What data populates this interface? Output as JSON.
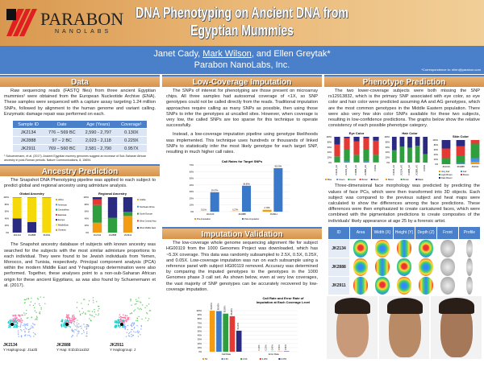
{
  "header": {
    "logo_text": "PARABON",
    "logo_sub": "NANOLABS",
    "title": "DNA Phenotyping on Ancient DNA from Egyptian Mummies",
    "authors_pre": "Janet Cady, ",
    "authors_u": "Mark Wilson",
    "authors_post": ", and Ellen Greytak*",
    "affiliation": "Parabon NanoLabs, Inc.",
    "correspondence": "*Correspondence to: ellen@parabon.com"
  },
  "data": {
    "heading": "Data",
    "text": "Raw sequencing reads (FASTQ files) from three ancient Egyptian mummies¹ were obtained from the European Nucleotide Archive (ENA). These samples were sequenced with a capture assay targeting 1.24 million SNPs, followed by alignment to the human genome and variant calling. Enzymatic damage repair was performed on each.",
    "columns": [
      "Sample ID",
      "Date",
      "Age (Years)",
      "Coverage¹"
    ],
    "rows": [
      [
        "JK2134",
        "776 – 569 BC",
        "2,590 - 2,797",
        "0.130X"
      ],
      [
        "JK2888",
        "97 – 2 BC",
        "2,023 - 2,118",
        "0.229X"
      ],
      [
        "JK2911",
        "769 – 560 BC",
        "2,581 - 2,790",
        "0.957X"
      ]
    ],
    "footnote": "¹ Schuenemann, et al. (2017). Ancient Egyptian mummy genomes suggest an increase of Sub-Saharan African ancestry in post-Roman periods. Nature Communications, 8, 15694."
  },
  "ancestry": {
    "heading": "Ancestry Prediction",
    "text1": "The Snapshot DNA Phenotyping pipeline was applied to each subject to predict global and regional ancestry using admixture analysis.",
    "text2": "The Snapshot ancestry database of subjects with known ancestry was searched for the subjects with the most similar admixture proportions to each individual. They were found to be Jewish individuals from Yemen, Morocco, and Tunisia, respectively. Principal component analysis (PCA) within the modern Middle East and Y-haplogroup determination were also performed. Together, these analyses point to a non-sub-Saharan African origin for these ancient Egyptians, as was also found by Schuenemann et al. (2017).",
    "pca": [
      {
        "id": "JK2134",
        "hap": "Y Haplogroup: J1a2b"
      },
      {
        "id": "JK2888",
        "hap": "Y Hap: E1b1b1a1b2"
      },
      {
        "id": "JK2911",
        "hap": "Y Haplogroup: J"
      }
    ]
  },
  "chart_data": [
    {
      "type": "bar",
      "stacked": true,
      "title": "Global Ancestry",
      "categories": [
        "JK2134",
        "JK2888",
        "JK2911"
      ],
      "yticks": [
        "0%",
        "20%",
        "40%",
        "60%",
        "80%",
        "100%"
      ],
      "series": [
        {
          "name": "Africa",
          "color": "#f39c12",
          "values": [
            0,
            0,
            0
          ]
        },
        {
          "name": "Americas",
          "color": "#4a90e2",
          "values": [
            0,
            0,
            0
          ]
        },
        {
          "name": "CentralAsia",
          "color": "#2e9e3e",
          "values": [
            0,
            0,
            0
          ]
        },
        {
          "name": "EastAsia",
          "color": "#e53935",
          "values": [
            0,
            0,
            0
          ]
        },
        {
          "name": "Europe",
          "color": "#2a2a80",
          "values": [
            40,
            30,
            0
          ]
        },
        {
          "name": "MiddleEast",
          "color": "#f5d90a",
          "values": [
            58,
            68,
            98
          ]
        },
        {
          "name": "Oceania",
          "color": "#d08a2a",
          "values": [
            2,
            2,
            2
          ]
        }
      ]
    },
    {
      "type": "bar",
      "stacked": true,
      "title": "Regional Ancestry",
      "categories": [
        "JK2134",
        "JK2888",
        "JK2911"
      ],
      "yticks": [
        "0%",
        "20%",
        "40%",
        "60%",
        "80%",
        "100%"
      ],
      "series": [
        {
          "name": "Arabia",
          "color": "#f39c12",
          "values": [
            28,
            0,
            47
          ]
        },
        {
          "name": "Northeast Africa",
          "color": "#4a90e2",
          "values": [
            0,
            0,
            0
          ]
        },
        {
          "name": "South Europe",
          "color": "#2e9e3e",
          "values": [
            50,
            42,
            12
          ]
        },
        {
          "name": "West Central Asia",
          "color": "#e53935",
          "values": [
            16,
            0,
            0
          ]
        },
        {
          "name": "West Middle East",
          "color": "#2a2a80",
          "values": [
            6,
            58,
            41
          ]
        }
      ]
    },
    {
      "type": "bar",
      "title": "Call Rates for Target SNPs",
      "categories": [
        "JK2134",
        "JK2888",
        "JK2911"
      ],
      "yticks": [
        "0%",
        "10%",
        "20%",
        "30%",
        "40%",
        "50%",
        "60%",
        "70%"
      ],
      "ylim": [
        0,
        70
      ],
      "series": [
        {
          "name": "Pre-Imputation",
          "color": "#f39c12",
          "values": [
            0.11,
            0.27,
            2.79
          ],
          "labels": [
            "0.11%",
            "0.27%",
            "2.79%"
          ]
        },
        {
          "name": "Post-Imputation",
          "color": "#3a78c9",
          "values": [
            29.07,
            38.89,
            65.19
          ],
          "labels": [
            "29.07%",
            "38.89%",
            "65.19%"
          ]
        }
      ]
    },
    {
      "type": "bar",
      "title": "Call Rate and Error Rate of Imputation at Each Coverage Level",
      "categories": [
        "Call Rate",
        "Error Rate"
      ],
      "yticks": [
        "0%",
        "10%",
        "20%",
        "30%",
        "40%",
        "50%",
        "60%",
        "70%",
        "80%",
        "90%",
        "100%"
      ],
      "ylim": [
        0,
        100
      ],
      "series": [
        {
          "name": "5X",
          "color": "#f39c12",
          "values": [
            99.9,
            0.1
          ],
          "labels": [
            "99.90%",
            "0.10%"
          ]
        },
        {
          "name": "2.5X",
          "color": "#3a78c9",
          "values": [
            98.9,
            0.2
          ],
          "labels": [
            "98.90%",
            "0.20%"
          ]
        },
        {
          "name": "0.5X",
          "color": "#2e9e3e",
          "values": [
            92.8,
            0.4
          ],
          "labels": [
            "92.80%",
            "0.40%"
          ]
        },
        {
          "name": "0.25X",
          "color": "#e53935",
          "values": [
            86.4,
            0.5
          ],
          "labels": [
            "86.40%",
            "0.50%"
          ]
        },
        {
          "name": "0.05X",
          "color": "#2a2a80",
          "values": [
            51.2,
            0.9
          ],
          "labels": [
            "51.20%",
            "0.90%"
          ]
        }
      ]
    },
    {
      "type": "bar",
      "stacked": true,
      "title": "Eye Color",
      "categories": [
        "JK2134_AA",
        "JK2134_AG",
        "JK2888_AA",
        "JK2888_AG",
        "JK2911"
      ],
      "yticks": [
        "0%",
        "20%",
        "40%",
        "60%",
        "80%",
        "100%"
      ],
      "series": [
        {
          "name": "Blue",
          "color": "#f39c12",
          "values": [
            0,
            0,
            0,
            0,
            0
          ]
        },
        {
          "name": "Green",
          "color": "#4a90e2",
          "values": [
            2,
            5,
            2,
            5,
            2
          ]
        },
        {
          "name": "Hazel",
          "color": "#2e9e3e",
          "values": [
            22,
            45,
            28,
            45,
            28
          ]
        },
        {
          "name": "Brown",
          "color": "#e53935",
          "values": [
            46,
            45,
            52,
            45,
            55
          ]
        },
        {
          "name": "Black",
          "color": "#2a2a80",
          "values": [
            30,
            5,
            18,
            5,
            15
          ]
        }
      ]
    },
    {
      "type": "bar",
      "stacked": true,
      "title": "Hair Color",
      "categories": [
        "JK2134_AA",
        "JK2134_AG",
        "JK2888_AA",
        "JK2888_AG",
        "JK2911"
      ],
      "yticks": [
        "0%",
        "20%",
        "40%",
        "60%",
        "80%",
        "100%"
      ],
      "series": [
        {
          "name": "Blond",
          "color": "#f39c12",
          "values": [
            0,
            0,
            0,
            0,
            0
          ]
        },
        {
          "name": "Brown",
          "color": "#2e9e3e",
          "values": [
            48,
            62,
            58,
            65,
            33
          ]
        },
        {
          "name": "Black",
          "color": "#2a2a80",
          "values": [
            52,
            38,
            42,
            35,
            67
          ]
        }
      ]
    },
    {
      "type": "bar",
      "stacked": true,
      "title": "Skin Color",
      "categories": [
        "JK2134",
        "JK2888",
        "JK2911"
      ],
      "yticks": [
        "0%",
        "20%",
        "40%",
        "60%",
        "80%",
        "100%"
      ],
      "series": [
        {
          "name": "Very Fair",
          "color": "#f39c12",
          "values": [
            0,
            0,
            10
          ]
        },
        {
          "name": "Fair",
          "color": "#4a90e2",
          "values": [
            0,
            5,
            15
          ]
        },
        {
          "name": "Light Brown",
          "color": "#2e9e3e",
          "values": [
            25,
            30,
            60
          ]
        },
        {
          "name": "Brown",
          "color": "#e53935",
          "values": [
            40,
            40,
            15
          ]
        },
        {
          "name": "Dark Brown",
          "color": "#2a2a80",
          "values": [
            35,
            25,
            0
          ]
        }
      ]
    }
  ],
  "imputation": {
    "heading": "Low-Coverage Imputation",
    "text1": "The SNPs of interest for phenotyping are those present on microarray chips. All three samples had autosomal coverage of <1X, so SNP genotypes could not be called directly from the reads. Traditional imputation approaches require calling as many SNPs as possible, then using those SNPs to infer the genotypes at uncalled sites. However, when coverage is very low, the called SNPs are too sparse for this technique to operate successfully.",
    "text2": "Instead, a low-coverage imputation pipeline using genotype likelihoods was implemented. This technique uses hundreds or thousands of linked SNPs to statistically infer the most likely genotype for each target SNP, resulting in much higher call rates."
  },
  "validation": {
    "heading": "Imputation Validation",
    "text": "The low-coverage whole genome sequencing alignment file for subject HG00119 from the 1000 Genomes Project was downloaded, which has ~5.3X coverage. This data was randomly subsampled to 2.5X, 0.5X, 0.25X, and 0.05X. Low-coverage imputation was run on each subsample using a reference panel with subject HG00119 removed. Accuracy was determined by comparing the imputed genotypes to the genotypes in the 1000 Genomes phase 3 call set. As shown below, even at very low coverages, the vast majority of SNP genotypes can be accurately recovered by low-coverage imputation."
  },
  "phenotype": {
    "heading": "Phenotype Prediction",
    "text1": "The two lower-coverage subjects were both missing the SNP rs12913832, which is the primary SNP associated with eye color, so eye color and hair color were predicted assuming AA and AG genotypes, which are the most common genotypes in the Middle Eastern population. There were also very few skin color SNPs available for these two subjects, resulting in low-confidence predictions. The graphs below show the relative consistency of each possible phenotype category.",
    "text2": "Three-dimensional face morphology was predicted by predicting the values of face PCs, which were then transformed into 3D objects. Each subject was compared to the previous subject and heat maps were calculated to show the differences among the face predictions. These differences were then emphasized to create caricatured faces, which were combined with the pigmentation predictions to create composites of the individuals' likely appearance at age 25 by a forensic artist.",
    "face_columns": [
      "ID",
      "Area",
      "Width (X)",
      "Height (Y)",
      "Depth (Z)",
      "Front",
      "Profile"
    ],
    "face_rows": [
      "JK2134",
      "JK2888",
      "JK2911"
    ],
    "composites": [
      "JK2134",
      "JK2888",
      "JK2911"
    ]
  }
}
